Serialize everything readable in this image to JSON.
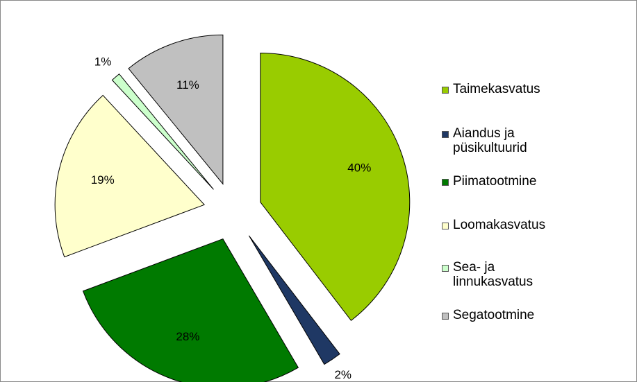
{
  "chart_data": {
    "type": "pie",
    "categories": [
      "Taimekasvatus",
      "Aiandus ja püsikultuurid",
      "Piimatootmine",
      "Loomakasvatus",
      "Sea- ja linnukasvatus",
      "Segatootmine"
    ],
    "values": [
      40,
      2,
      28,
      19,
      1,
      11
    ],
    "value_labels": [
      "40%",
      "2%",
      "28%",
      "19%",
      "1%",
      "11%"
    ],
    "colors": [
      "#99cc00",
      "#1f3864",
      "#007a00",
      "#ffffcc",
      "#ccffcc",
      "#c0c0c0"
    ],
    "legend": "right"
  }
}
